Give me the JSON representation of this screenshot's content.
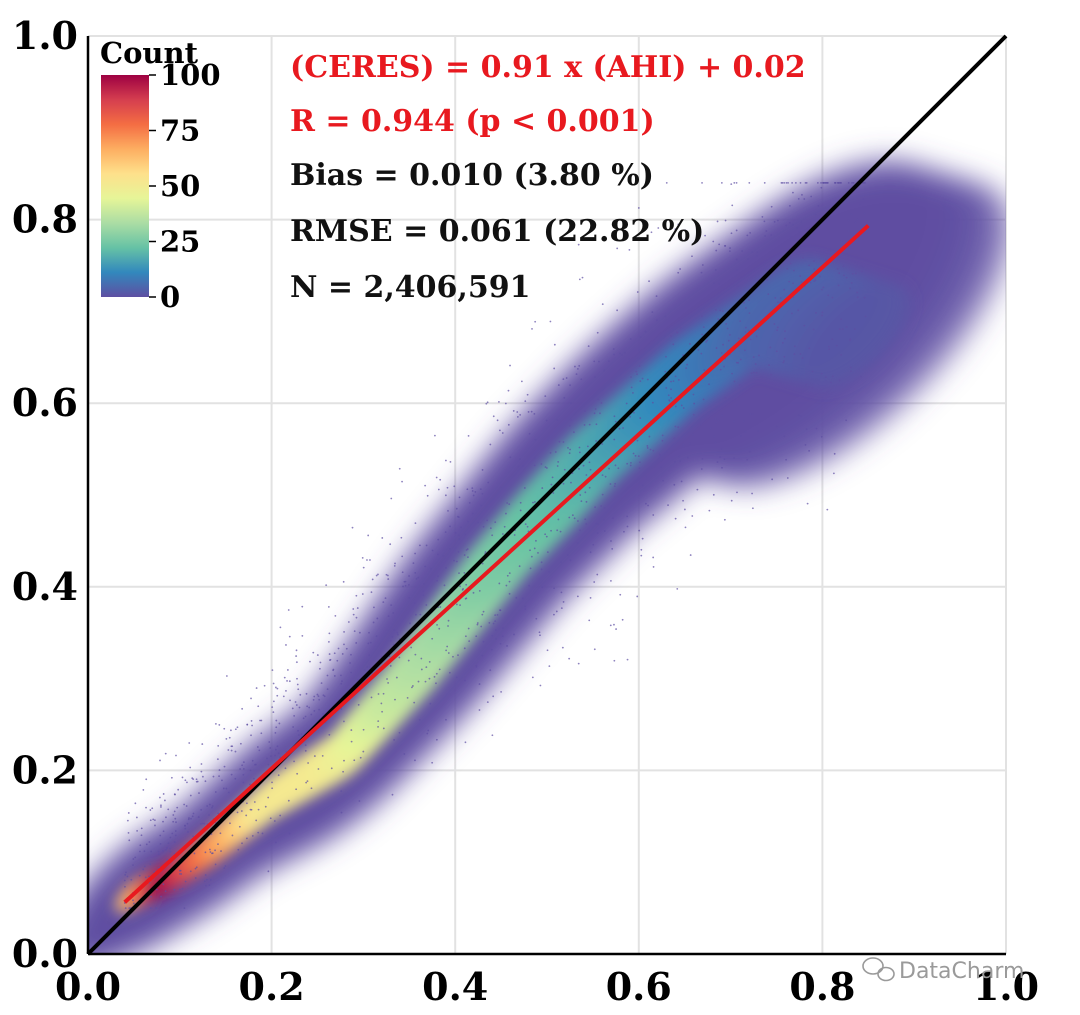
{
  "chart_data": {
    "type": "scatter",
    "subtype": "density-scatter",
    "title": "",
    "xlabel": "",
    "ylabel": "",
    "xlim": [
      0.0,
      1.0
    ],
    "ylim": [
      0.0,
      1.0
    ],
    "grid": true,
    "x_ticks": [
      "0.0",
      "0.2",
      "0.4",
      "0.6",
      "0.8",
      "1.0"
    ],
    "y_ticks": [
      "0.0",
      "0.2",
      "0.4",
      "0.6",
      "0.8",
      "1.0"
    ],
    "colorbar": {
      "title": "Count",
      "min": 0,
      "max": 100,
      "ticks": [
        "0",
        "25",
        "50",
        "75",
        "100"
      ],
      "colormap": "Spectral_r",
      "colors": [
        "#5e4fa2",
        "#3288bd",
        "#66c2a5",
        "#abdda4",
        "#e6f598",
        "#fee08b",
        "#fdae61",
        "#f46d43",
        "#d53e4f",
        "#9e0142"
      ]
    },
    "lines": [
      {
        "name": "1:1 line",
        "color": "#000000",
        "x": [
          0.0,
          1.0
        ],
        "y": [
          0.0,
          1.0
        ]
      },
      {
        "name": "fit",
        "color": "#e8191f",
        "x": [
          0.04,
          0.85
        ],
        "y": [
          0.0564,
          0.7935
        ]
      }
    ],
    "density_ridge": [
      {
        "x": 0.05,
        "y": 0.065,
        "count": 60
      },
      {
        "x": 0.09,
        "y": 0.085,
        "count": 100
      },
      {
        "x": 0.14,
        "y": 0.12,
        "count": 75
      },
      {
        "x": 0.2,
        "y": 0.17,
        "count": 52
      },
      {
        "x": 0.28,
        "y": 0.22,
        "count": 50
      },
      {
        "x": 0.35,
        "y": 0.3,
        "count": 38
      },
      {
        "x": 0.45,
        "y": 0.43,
        "count": 27
      },
      {
        "x": 0.55,
        "y": 0.54,
        "count": 20
      },
      {
        "x": 0.65,
        "y": 0.63,
        "count": 12
      },
      {
        "x": 0.75,
        "y": 0.7,
        "count": 5
      },
      {
        "x": 0.85,
        "y": 0.67,
        "count": 1
      }
    ],
    "annotations": {
      "equation": "(CERES) = 0.91 x (AHI) + 0.02",
      "r": "R = 0.944 (p < 0.001)",
      "bias": "Bias = 0.010 (3.80 %)",
      "rmse": "RMSE = 0.061 (22.82 %)",
      "n": "N = 2,406,591"
    },
    "annotation_colors": {
      "fit": "#e8191f",
      "stats": "#111111"
    }
  },
  "watermark": "DataCharm"
}
